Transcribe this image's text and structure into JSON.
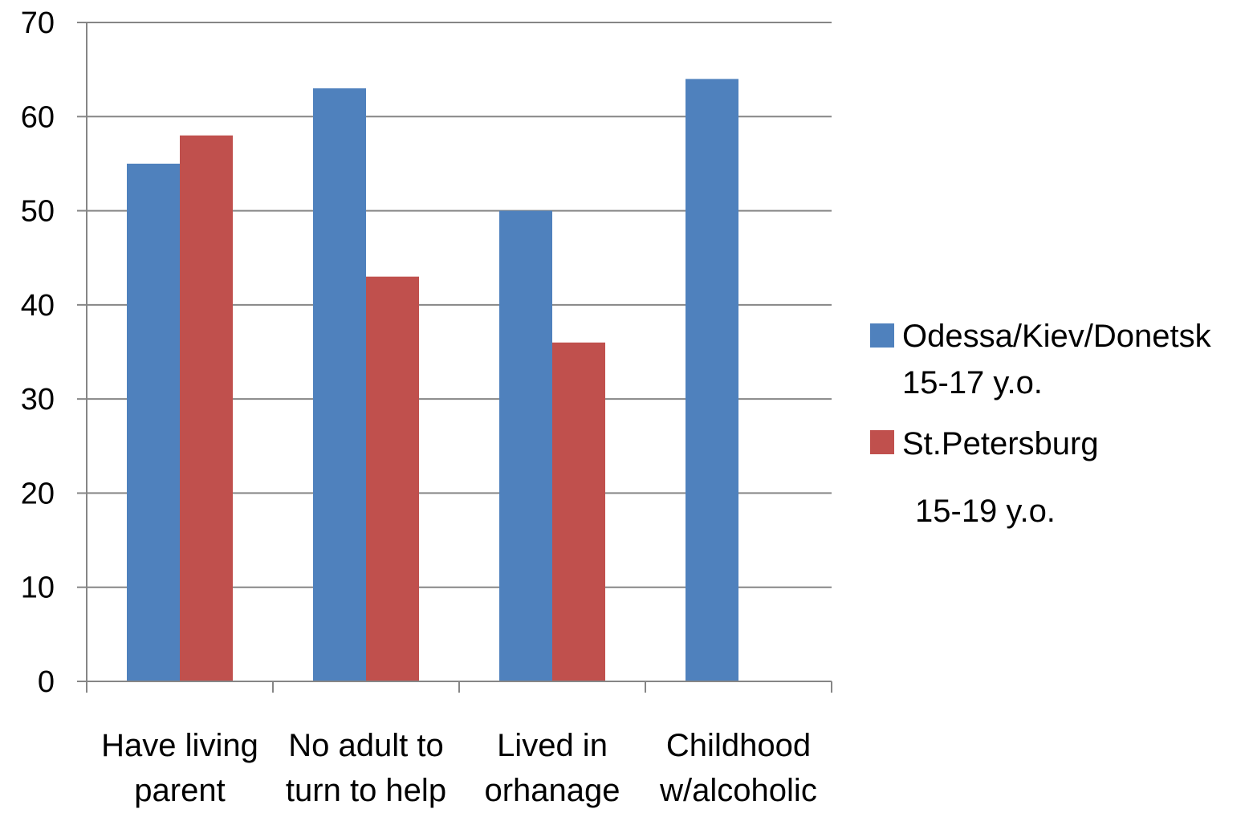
{
  "chart_data": {
    "type": "bar",
    "categories": [
      [
        "Have living",
        "parent"
      ],
      [
        "No adult to",
        "turn to help"
      ],
      [
        "Lived in",
        "orhanage"
      ],
      [
        "Childhood",
        "w/alcoholic"
      ]
    ],
    "series": [
      {
        "name": "Odessa/Kiev/Donetsk 15-17 y.o.",
        "legend_lines": [
          "Odessa/Kiev/Donetsk",
          "15-17 y.o."
        ],
        "color": "#4F81BD",
        "values": [
          55,
          63,
          50,
          64
        ]
      },
      {
        "name": "St.Petersburg 15-19 y.o.",
        "legend_lines": [
          "St.Petersburg",
          "15-19 y.o."
        ],
        "color": "#C0504D",
        "values": [
          58,
          43,
          36,
          null
        ]
      }
    ],
    "ylim": [
      0,
      70
    ],
    "yticks": [
      0,
      10,
      20,
      30,
      40,
      50,
      60,
      70
    ],
    "grid": true,
    "legend_position": "right",
    "title": "",
    "xlabel": "",
    "ylabel": ""
  }
}
